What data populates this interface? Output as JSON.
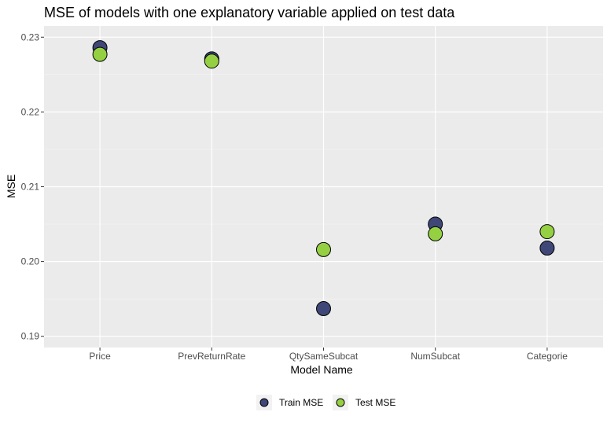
{
  "chart_data": {
    "type": "scatter",
    "title": "MSE of models with one explanatory variable applied on test data",
    "xlabel": "Model Name",
    "ylabel": "MSE",
    "categories": [
      "Price",
      "PrevReturnRate",
      "QtySameSubcat",
      "NumSubcat",
      "Categorie"
    ],
    "ylim": [
      0.1885,
      0.2315
    ],
    "yticks": [
      "0.19",
      "0.20",
      "0.21",
      "0.22",
      "0.23"
    ],
    "yticks_values": [
      0.19,
      0.2,
      0.21,
      0.22,
      0.23
    ],
    "grid": true,
    "legend_position": "bottom",
    "series": [
      {
        "name": "Train MSE",
        "color": "#3f4778",
        "values": [
          0.2286,
          0.2271,
          0.1937,
          0.205,
          0.2018
        ]
      },
      {
        "name": "Test MSE",
        "color": "#95d043",
        "values": [
          0.2277,
          0.2268,
          0.2016,
          0.2037,
          0.204
        ]
      }
    ]
  }
}
